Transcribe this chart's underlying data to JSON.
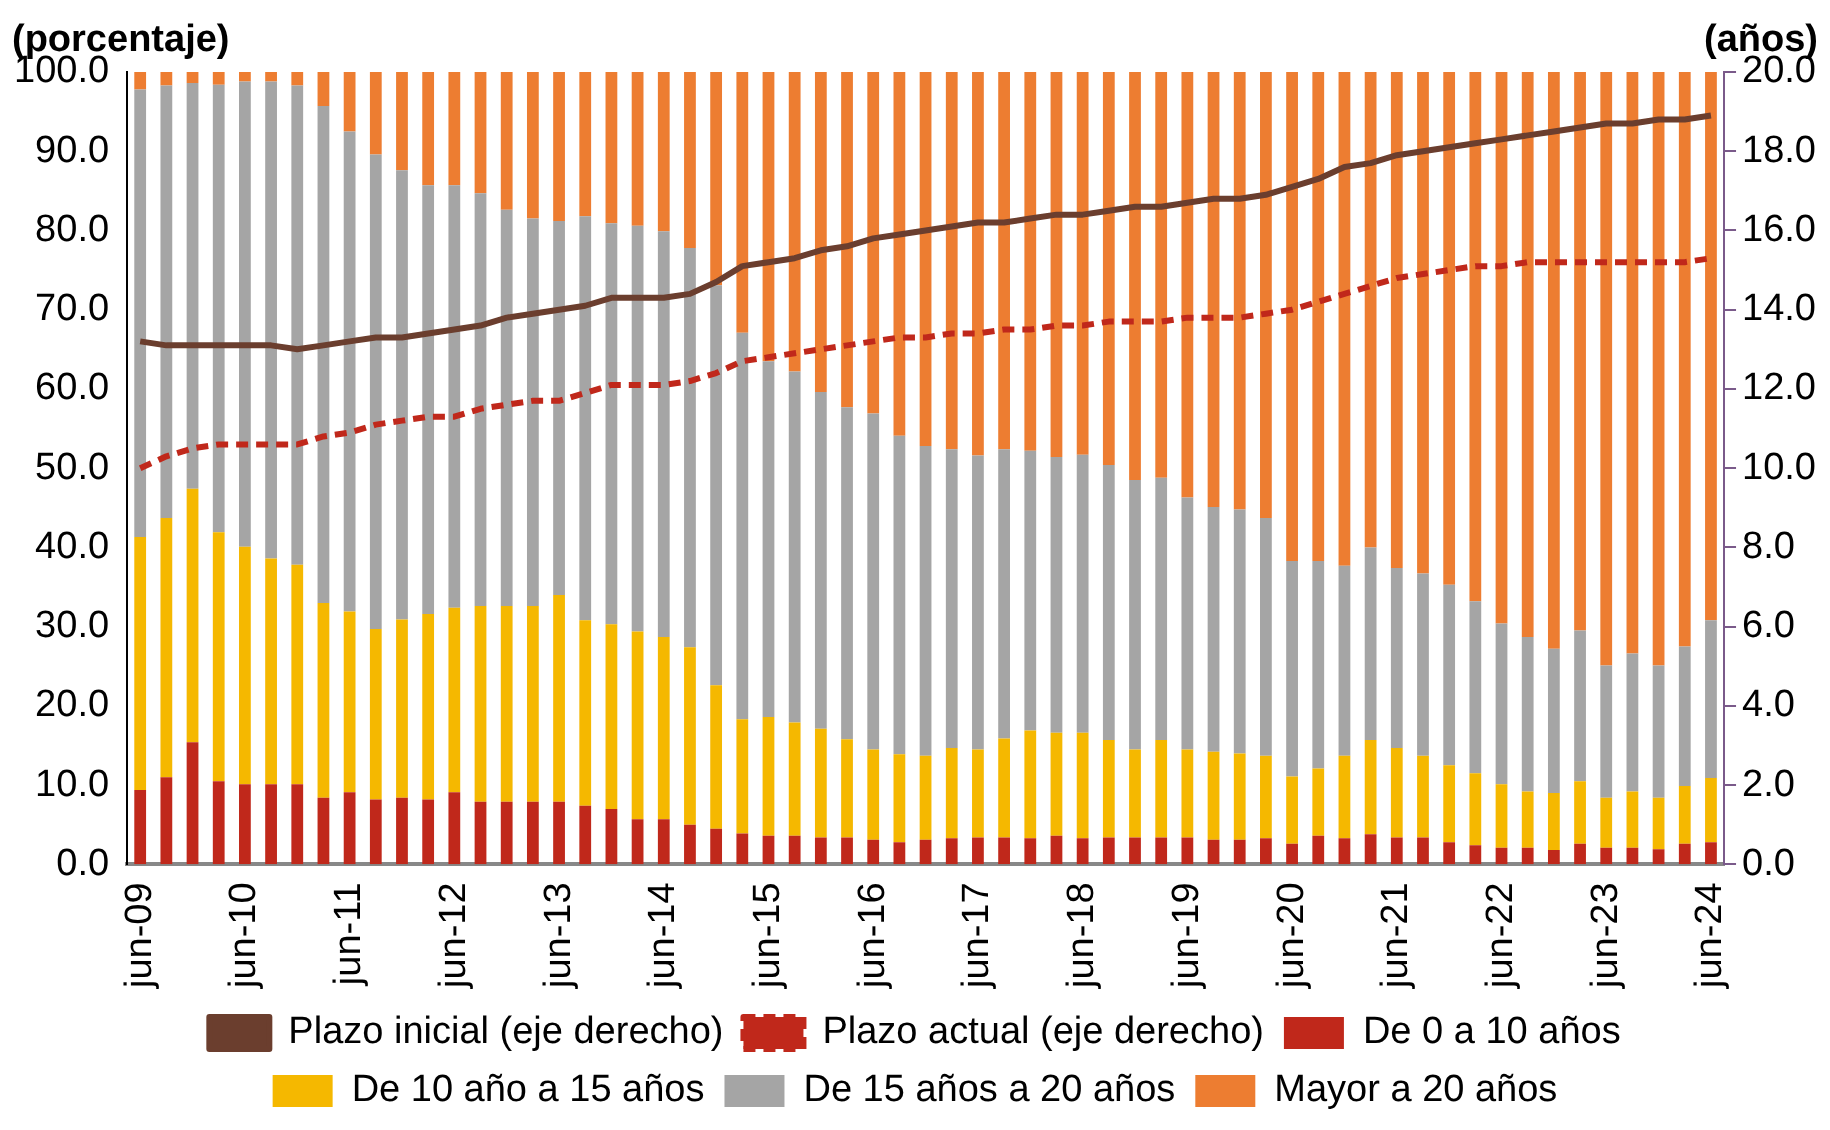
{
  "chart_data": {
    "type": "bar",
    "stacked": true,
    "legend": "bottom",
    "marker": "none",
    "ylabel": "(porcentaje)",
    "y2label": "(años)",
    "categories": [
      "jun-09",
      null,
      null,
      null,
      "jun-10",
      null,
      null,
      null,
      "jun-11",
      null,
      null,
      null,
      "jun-12",
      null,
      null,
      null,
      "jun-13",
      null,
      null,
      null,
      "jun-14",
      null,
      null,
      null,
      "jun-15",
      null,
      null,
      null,
      "jun-16",
      null,
      null,
      null,
      "jun-17",
      null,
      null,
      null,
      "jun-18",
      null,
      null,
      null,
      "jun-19",
      null,
      null,
      null,
      "jun-20",
      null,
      null,
      null,
      "jun-21",
      null,
      null,
      null,
      "jun-22",
      null,
      null,
      null,
      "jun-23",
      null,
      null,
      null,
      "jun-24"
    ],
    "ylim": [
      0,
      100
    ],
    "yticks": [
      {
        "value": 0,
        "label": "0.0"
      },
      {
        "value": 10,
        "label": "10.0"
      },
      {
        "value": 20,
        "label": "20.0"
      },
      {
        "value": 30,
        "label": "30.0"
      },
      {
        "value": 40,
        "label": "40.0"
      },
      {
        "value": 50,
        "label": "50.0"
      },
      {
        "value": 60,
        "label": "60.0"
      },
      {
        "value": 70,
        "label": "70.0"
      },
      {
        "value": 80,
        "label": "80.0"
      },
      {
        "value": 90,
        "label": "90.0"
      },
      {
        "value": 100,
        "label": "100.0"
      }
    ],
    "y2lim": [
      0,
      20
    ],
    "y2ticks": [
      {
        "value": 0,
        "label": "0.0"
      },
      {
        "value": 2,
        "label": "2.0"
      },
      {
        "value": 4,
        "label": "4.0"
      },
      {
        "value": 6,
        "label": "6.0"
      },
      {
        "value": 8,
        "label": "8.0"
      },
      {
        "value": 10,
        "label": "10.0"
      },
      {
        "value": 12,
        "label": "12.0"
      },
      {
        "value": 14,
        "label": "14.0"
      },
      {
        "value": 16,
        "label": "16.0"
      },
      {
        "value": 18,
        "label": "18.0"
      },
      {
        "value": 20,
        "label": "20.0"
      }
    ],
    "series": [
      {
        "name": "De 0 a 10 años",
        "color": "#c0281b",
        "values": [
          9.4,
          11.0,
          15.4,
          10.5,
          10.1,
          10.1,
          10.1,
          8.4,
          9.1,
          8.2,
          8.4,
          8.2,
          9.1,
          7.9,
          7.9,
          7.9,
          7.9,
          7.4,
          7.0,
          5.7,
          5.7,
          5.0,
          4.5,
          3.9,
          3.6,
          3.6,
          3.4,
          3.4,
          3.1,
          2.8,
          3.1,
          3.3,
          3.4,
          3.4,
          3.3,
          3.6,
          3.3,
          3.4,
          3.4,
          3.4,
          3.4,
          3.1,
          3.1,
          3.3,
          2.6,
          3.6,
          3.3,
          3.8,
          3.4,
          3.4,
          2.8,
          2.4,
          2.1,
          2.1,
          1.8,
          2.6,
          2.1,
          2.1,
          1.9,
          2.6,
          2.8
        ]
      },
      {
        "name": "De 10 año a 15 años",
        "color": "#f5b800",
        "values": [
          31.9,
          32.7,
          32.0,
          31.4,
          30.0,
          28.5,
          27.7,
          24.6,
          22.8,
          21.5,
          22.5,
          23.4,
          23.3,
          24.7,
          24.7,
          24.7,
          26.1,
          23.4,
          23.3,
          23.7,
          23.0,
          22.4,
          18.1,
          14.4,
          15.0,
          14.3,
          13.7,
          12.4,
          11.4,
          11.1,
          10.6,
          11.4,
          11.1,
          12.5,
          13.6,
          13.0,
          13.3,
          12.3,
          11.1,
          12.3,
          11.1,
          11.1,
          10.9,
          10.4,
          8.5,
          8.5,
          10.4,
          11.9,
          11.3,
          10.3,
          9.7,
          9.1,
          8.0,
          7.1,
          7.2,
          7.9,
          6.3,
          7.1,
          6.5,
          7.3,
          8.1
        ]
      },
      {
        "name": "De 15 años a 20 años",
        "color": "#a5a5a5",
        "values": [
          56.5,
          54.6,
          51.2,
          56.5,
          58.7,
          60.2,
          60.5,
          62.7,
          60.6,
          59.9,
          56.7,
          54.1,
          53.3,
          52.1,
          50.0,
          48.9,
          47.2,
          51.0,
          50.6,
          51.2,
          51.2,
          50.4,
          50.5,
          48.8,
          44.9,
          44.3,
          42.5,
          41.9,
          42.4,
          40.2,
          39.1,
          37.7,
          37.1,
          36.5,
          35.3,
          34.8,
          35.1,
          34.7,
          34.0,
          33.1,
          31.8,
          30.9,
          30.8,
          30.0,
          27.2,
          26.2,
          24.0,
          24.3,
          22.7,
          23.0,
          22.8,
          21.7,
          20.3,
          19.5,
          18.2,
          19.0,
          16.7,
          17.4,
          16.7,
          17.6,
          19.9
        ]
      },
      {
        "name": "Mayor a 20 años",
        "color": "#ed7d31",
        "values": [
          2.2,
          1.7,
          1.4,
          1.6,
          1.2,
          1.2,
          1.7,
          4.3,
          7.5,
          10.4,
          12.4,
          14.3,
          14.3,
          15.3,
          17.4,
          18.5,
          18.8,
          18.2,
          19.1,
          19.4,
          20.1,
          22.2,
          26.9,
          32.9,
          36.5,
          37.8,
          40.4,
          42.3,
          43.1,
          45.9,
          47.2,
          47.6,
          48.4,
          47.6,
          47.8,
          48.6,
          48.3,
          49.6,
          51.5,
          51.2,
          53.7,
          54.9,
          55.2,
          56.3,
          61.7,
          61.7,
          62.3,
          60.0,
          62.6,
          63.3,
          64.7,
          66.8,
          69.6,
          71.3,
          72.8,
          70.5,
          74.9,
          73.4,
          74.9,
          72.5,
          69.2
        ]
      },
      {
        "name": "Plazo inicial (eje derecho)",
        "type": "line",
        "axis": "y2",
        "line_style": "solid",
        "color": "#6b3e2e",
        "values": [
          13.2,
          13.1,
          13.1,
          13.1,
          13.1,
          13.1,
          13.0,
          13.1,
          13.2,
          13.3,
          13.3,
          13.4,
          13.5,
          13.6,
          13.8,
          13.9,
          14.0,
          14.1,
          14.3,
          14.3,
          14.3,
          14.4,
          14.7,
          15.1,
          15.2,
          15.3,
          15.5,
          15.6,
          15.8,
          15.9,
          16.0,
          16.1,
          16.2,
          16.2,
          16.3,
          16.4,
          16.4,
          16.5,
          16.6,
          16.6,
          16.7,
          16.8,
          16.8,
          16.9,
          17.1,
          17.3,
          17.6,
          17.7,
          17.9,
          18.0,
          18.1,
          18.2,
          18.3,
          18.4,
          18.5,
          18.6,
          18.7,
          18.7,
          18.8,
          18.8,
          18.9
        ]
      },
      {
        "name": "Plazo actual (eje derecho)",
        "type": "line",
        "axis": "y2",
        "line_style": "dashed",
        "color": "#c0281b",
        "values": [
          10.0,
          10.3,
          10.5,
          10.6,
          10.6,
          10.6,
          10.6,
          10.8,
          10.9,
          11.1,
          11.2,
          11.3,
          11.3,
          11.5,
          11.6,
          11.7,
          11.7,
          11.9,
          12.1,
          12.1,
          12.1,
          12.2,
          12.4,
          12.7,
          12.8,
          12.9,
          13.0,
          13.1,
          13.2,
          13.3,
          13.3,
          13.4,
          13.4,
          13.5,
          13.5,
          13.6,
          13.6,
          13.7,
          13.7,
          13.7,
          13.8,
          13.8,
          13.8,
          13.9,
          14.0,
          14.2,
          14.4,
          14.6,
          14.8,
          14.9,
          15.0,
          15.1,
          15.1,
          15.2,
          15.2,
          15.2,
          15.2,
          15.2,
          15.2,
          15.2,
          15.3
        ]
      }
    ]
  }
}
